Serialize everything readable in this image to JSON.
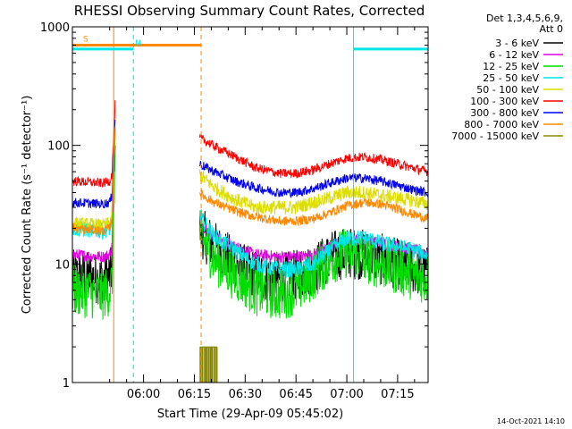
{
  "chart_data": {
    "type": "line",
    "title": "RHESSI Observing Summary Count Rates, Corrected",
    "xlabel": "Start Time (29-Apr-09 05:45:02)",
    "ylabel": "Corrected Count Rate (s⁻¹ detector⁻¹)",
    "yscale": "log",
    "ylim": [
      1,
      1000
    ],
    "xlim_minutes": [
      -6.0,
      99.0
    ],
    "y_ticks": [
      {
        "value": 1,
        "label": "1"
      },
      {
        "value": 10,
        "label": "10"
      },
      {
        "value": 100,
        "label": "100"
      },
      {
        "value": 1000,
        "label": "1000"
      }
    ],
    "x_ticks": [
      {
        "minute": 15,
        "label": "06:00"
      },
      {
        "minute": 30,
        "label": "06:15"
      },
      {
        "minute": 45,
        "label": "06:30"
      },
      {
        "minute": 60,
        "label": "06:45"
      },
      {
        "minute": 75,
        "label": "07:00"
      },
      {
        "minute": 90,
        "label": "07:15"
      }
    ],
    "legend_title": [
      "Det 1,3,4,5,6,9,",
      "Att 0"
    ],
    "timestamp": "14-Oct-2021 14:10",
    "series": [
      {
        "name": "3 - 6 keV",
        "color": "#000000",
        "noise": 0.22,
        "points": [
          [
            -6,
            8
          ],
          [
            3,
            7.5
          ],
          [
            5,
            8
          ],
          [
            5.7,
            9
          ],
          [
            6.2,
            40
          ],
          [
            6.6,
            130
          ],
          [
            31.5,
            20
          ],
          [
            33,
            17
          ],
          [
            36,
            14
          ],
          [
            42,
            10
          ],
          [
            48,
            8
          ],
          [
            55,
            7.5
          ],
          [
            60,
            8
          ],
          [
            65,
            9
          ],
          [
            70,
            11.5
          ],
          [
            75,
            12.5
          ],
          [
            80,
            12
          ],
          [
            85,
            11
          ],
          [
            90,
            10
          ],
          [
            95,
            9
          ],
          [
            99,
            8.5
          ]
        ]
      },
      {
        "name": "6 - 12 keV",
        "color": "#e000e0",
        "noise": 0.05,
        "points": [
          [
            -6,
            12
          ],
          [
            3,
            11.5
          ],
          [
            5,
            12
          ],
          [
            5.7,
            14
          ],
          [
            6.2,
            50
          ],
          [
            6.6,
            140
          ],
          [
            31.5,
            22
          ],
          [
            33,
            20
          ],
          [
            36,
            17
          ],
          [
            42,
            14
          ],
          [
            48,
            12
          ],
          [
            55,
            11.5
          ],
          [
            60,
            11.5
          ],
          [
            65,
            12
          ],
          [
            70,
            14
          ],
          [
            75,
            16
          ],
          [
            80,
            16
          ],
          [
            85,
            15
          ],
          [
            90,
            14
          ],
          [
            95,
            13
          ],
          [
            99,
            12.5
          ]
        ]
      },
      {
        "name": "12 - 25 keV",
        "color": "#00dd00",
        "noise": 0.22,
        "points": [
          [
            -6,
            6
          ],
          [
            3,
            5.5
          ],
          [
            5,
            6
          ],
          [
            5.7,
            7
          ],
          [
            6.2,
            30
          ],
          [
            6.6,
            110
          ],
          [
            31.5,
            19
          ],
          [
            33,
            15
          ],
          [
            36,
            11
          ],
          [
            42,
            8
          ],
          [
            48,
            6
          ],
          [
            55,
            5.5
          ],
          [
            60,
            6
          ],
          [
            65,
            8
          ],
          [
            70,
            11
          ],
          [
            75,
            12.5
          ],
          [
            80,
            11.5
          ],
          [
            85,
            10
          ],
          [
            90,
            9
          ],
          [
            95,
            8
          ],
          [
            99,
            7.5
          ]
        ]
      },
      {
        "name": "25 - 50 keV",
        "color": "#00e5e5",
        "noise": 0.07,
        "points": [
          [
            -6,
            20
          ],
          [
            3,
            19
          ],
          [
            5,
            20
          ],
          [
            5.7,
            25
          ],
          [
            6.2,
            70
          ],
          [
            6.6,
            150
          ],
          [
            31.5,
            25
          ],
          [
            33,
            22
          ],
          [
            36,
            17
          ],
          [
            42,
            13
          ],
          [
            48,
            10
          ],
          [
            55,
            9
          ],
          [
            60,
            9
          ],
          [
            65,
            10
          ],
          [
            70,
            13
          ],
          [
            75,
            16.5
          ],
          [
            80,
            16.5
          ],
          [
            85,
            15
          ],
          [
            90,
            14
          ],
          [
            95,
            13
          ],
          [
            99,
            12
          ]
        ]
      },
      {
        "name": "50 - 100 keV",
        "color": "#dddd00",
        "noise": 0.06,
        "points": [
          [
            -6,
            22
          ],
          [
            3,
            21
          ],
          [
            5,
            22
          ],
          [
            5.7,
            26
          ],
          [
            6.2,
            75
          ],
          [
            6.6,
            160
          ],
          [
            31.5,
            58
          ],
          [
            33,
            52
          ],
          [
            36,
            44
          ],
          [
            42,
            35
          ],
          [
            48,
            30
          ],
          [
            55,
            30
          ],
          [
            60,
            30
          ],
          [
            65,
            33
          ],
          [
            70,
            36
          ],
          [
            75,
            40
          ],
          [
            80,
            40
          ],
          [
            85,
            38
          ],
          [
            90,
            36
          ],
          [
            95,
            34
          ],
          [
            99,
            32
          ]
        ]
      },
      {
        "name": "100 - 300 keV",
        "color": "#ff0000",
        "noise": 0.04,
        "points": [
          [
            -6,
            50
          ],
          [
            3,
            48
          ],
          [
            5,
            50
          ],
          [
            5.7,
            58
          ],
          [
            6.2,
            120
          ],
          [
            6.6,
            220
          ],
          [
            31.5,
            115
          ],
          [
            33,
            110
          ],
          [
            36,
            98
          ],
          [
            42,
            80
          ],
          [
            48,
            65
          ],
          [
            55,
            58
          ],
          [
            60,
            58
          ],
          [
            65,
            62
          ],
          [
            70,
            70
          ],
          [
            75,
            78
          ],
          [
            80,
            80
          ],
          [
            85,
            76
          ],
          [
            90,
            70
          ],
          [
            95,
            64
          ],
          [
            99,
            60
          ]
        ]
      },
      {
        "name": "300 - 800 keV",
        "color": "#0000ee",
        "noise": 0.04,
        "points": [
          [
            -6,
            33
          ],
          [
            3,
            32
          ],
          [
            5,
            33
          ],
          [
            5.7,
            38
          ],
          [
            6.2,
            90
          ],
          [
            6.6,
            170
          ],
          [
            31.5,
            70
          ],
          [
            33,
            66
          ],
          [
            36,
            60
          ],
          [
            42,
            50
          ],
          [
            48,
            44
          ],
          [
            55,
            40
          ],
          [
            60,
            40
          ],
          [
            65,
            43
          ],
          [
            70,
            48
          ],
          [
            75,
            53
          ],
          [
            80,
            53
          ],
          [
            85,
            50
          ],
          [
            90,
            46
          ],
          [
            95,
            42
          ],
          [
            99,
            40
          ]
        ]
      },
      {
        "name": "800 - 7000 keV",
        "color": "#ff8800",
        "noise": 0.04,
        "points": [
          [
            -6,
            20
          ],
          [
            3,
            19
          ],
          [
            5,
            20
          ],
          [
            5.7,
            24
          ],
          [
            6.2,
            70
          ],
          [
            6.6,
            150
          ],
          [
            31.5,
            40
          ],
          [
            33,
            37
          ],
          [
            36,
            33
          ],
          [
            42,
            28
          ],
          [
            48,
            25
          ],
          [
            55,
            23
          ],
          [
            60,
            23
          ],
          [
            65,
            24
          ],
          [
            70,
            27
          ],
          [
            75,
            31
          ],
          [
            80,
            33
          ],
          [
            85,
            32
          ],
          [
            90,
            29
          ],
          [
            95,
            26
          ],
          [
            99,
            24
          ]
        ]
      },
      {
        "name": "7000 - 15000 keV",
        "color": "#888800",
        "noise": 0.0,
        "points": []
      }
    ],
    "bursts_7000_15000_minutes": [
      31.8,
      32.4,
      33.1,
      33.6,
      34.2,
      34.8,
      35.3,
      36.0,
      36.6
    ],
    "attenuator_bars": [
      {
        "label": "S",
        "color": "#ff8800",
        "start": -6.0,
        "end": 32.0,
        "value": 700
      },
      {
        "label": "N",
        "color": "#00e5e5",
        "start": -6.0,
        "end": 12.0,
        "value": 650
      },
      {
        "label": "",
        "color": "#00e5e5",
        "start": 77.0,
        "end": 99.0,
        "value": 650
      }
    ],
    "time_markers": [
      {
        "minute": -6.0,
        "color": "#00e5e5",
        "style": "solid"
      },
      {
        "minute": 6.2,
        "color": "#ff8800",
        "style": "solid"
      },
      {
        "minute": 12.0,
        "color": "#00e5e5",
        "style": "dashed"
      },
      {
        "minute": 32.0,
        "color": "#ff8800",
        "style": "dashed"
      },
      {
        "minute": 77.0,
        "color": "#00e5e5",
        "style": "solid"
      },
      {
        "minute": 99.0,
        "color": "#00e5e5",
        "style": "dashed"
      }
    ]
  }
}
